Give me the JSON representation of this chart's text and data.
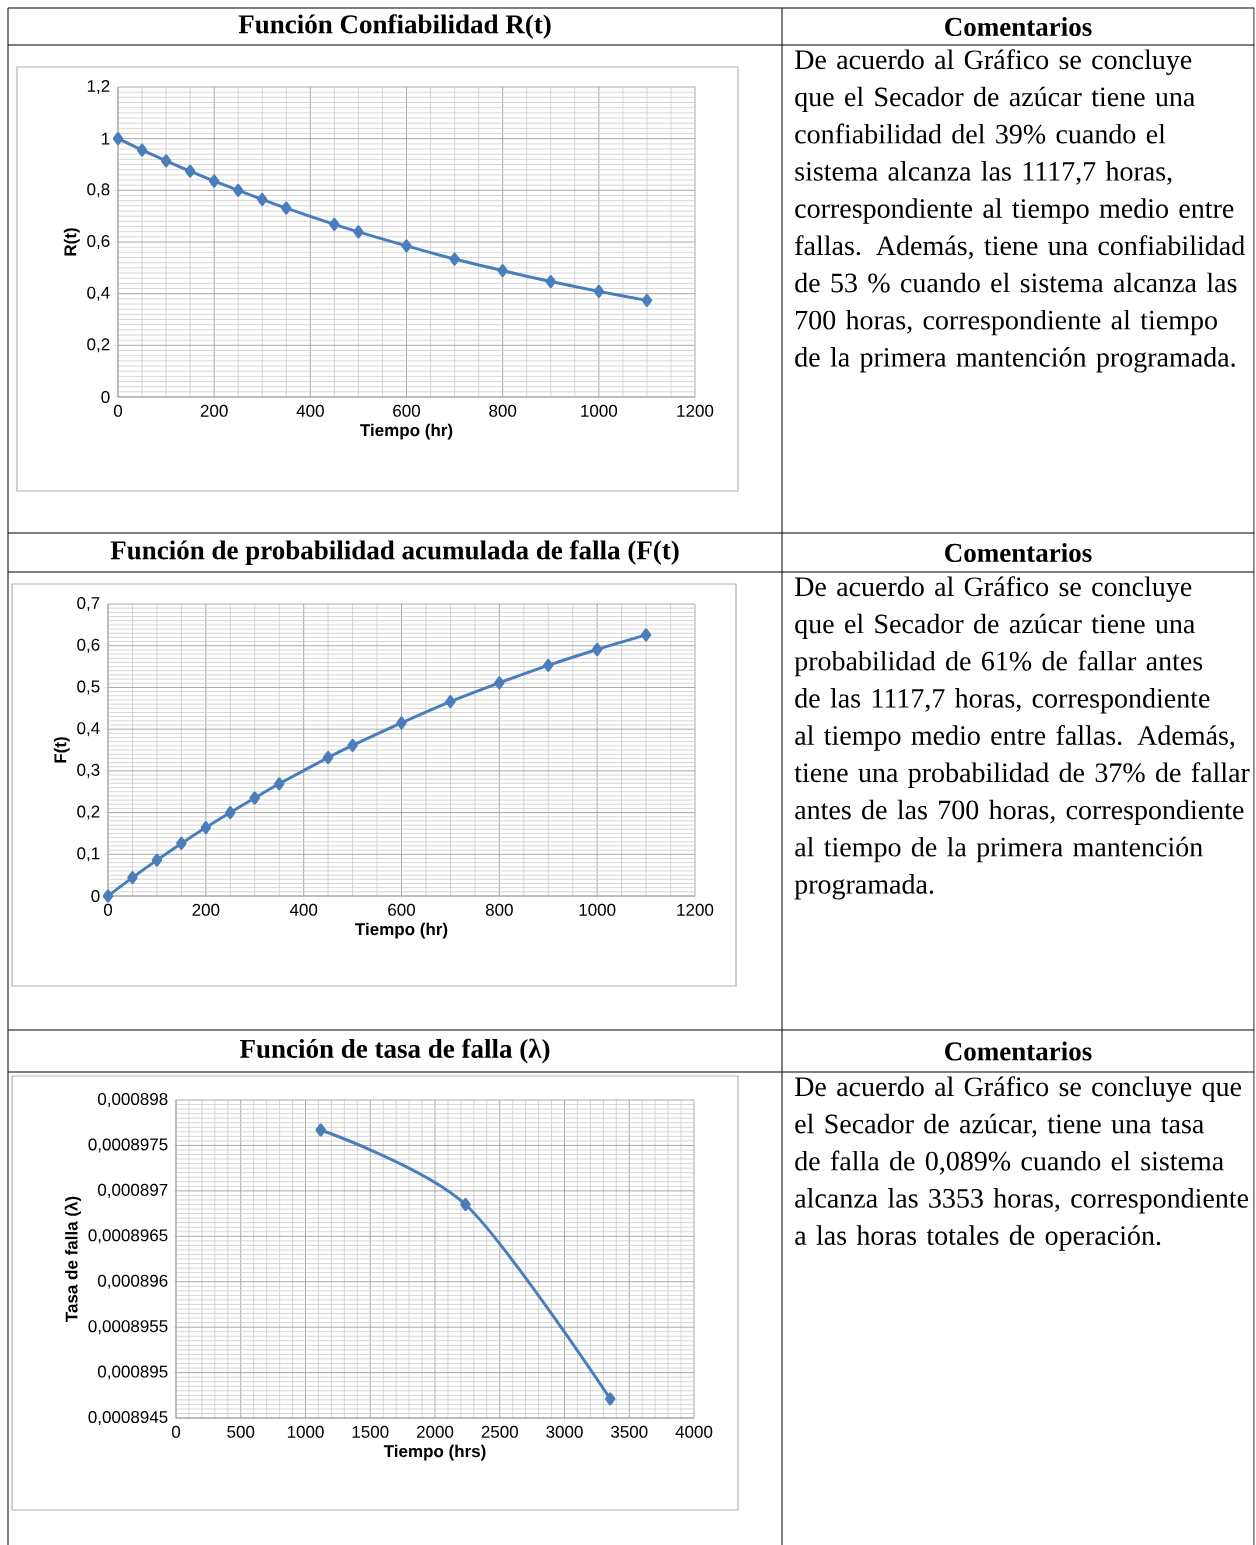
{
  "chart_data": [
    {
      "type": "line",
      "title": "Función  Confiabilidad  R(t)",
      "xlabel": "Tiempo (hr)",
      "ylabel": "R(t)",
      "color": "#4a7ebb",
      "marker": "diamond",
      "grid": true,
      "x": [
        0,
        50,
        100,
        150,
        200,
        250,
        300,
        350,
        450,
        500,
        600,
        700,
        800,
        900,
        1000,
        1100
      ],
      "values": [
        1,
        0.956,
        0.914,
        0.874,
        0.836,
        0.8,
        0.765,
        0.731,
        0.668,
        0.639,
        0.585,
        0.534,
        0.489,
        0.447,
        0.409,
        0.374
      ],
      "xlim": [
        0,
        1200
      ],
      "xticks": [
        0,
        200,
        400,
        600,
        800,
        1000,
        1200
      ],
      "ylim": [
        0,
        1.2
      ],
      "yticks": [
        0,
        {
          "value": 0.2,
          "label": "0,2"
        },
        {
          "value": 0.4,
          "label": "0,4"
        },
        {
          "value": 0.6,
          "label": "0,6"
        },
        {
          "value": 0.8,
          "label": "0,8"
        },
        1,
        {
          "value": 1.2,
          "label": "1,2"
        }
      ],
      "annotations": [
        "Comentarios",
        "De acuerdo al Gráfico  se concluye que el Secador de azúcar  tiene  una confiabilidad  del 39% cuando el sistema  alcanza  las 1117,7 horas, correspondiente  al tiempo medio entre fallas.  Además, tiene una confiabilidad  de 53 % cuando el sistema  alcanza  las 700 horas, correspondiente  al tiempo  de la primera  mantención  programada."
      ]
    },
    {
      "type": "line",
      "title": "Función  de probabilidad  acumulada  de falla (F(t)",
      "xlabel": "Tiempo (hr)",
      "ylabel": "F(t)",
      "color": "#4a7ebb",
      "marker": "diamond",
      "grid": true,
      "x": [
        0,
        50,
        100,
        150,
        200,
        250,
        300,
        350,
        450,
        500,
        600,
        700,
        800,
        900,
        1000,
        1100
      ],
      "values": [
        0,
        0.044,
        0.086,
        0.126,
        0.164,
        0.2,
        0.235,
        0.269,
        0.332,
        0.361,
        0.415,
        0.466,
        0.511,
        0.553,
        0.591,
        0.626
      ],
      "xlim": [
        0,
        1200
      ],
      "xticks": [
        0,
        200,
        400,
        600,
        800,
        1000,
        1200
      ],
      "ylim": [
        0,
        0.7
      ],
      "yticks": [
        0,
        {
          "value": 0.1,
          "label": "0,1"
        },
        {
          "value": 0.2,
          "label": "0,2"
        },
        {
          "value": 0.3,
          "label": "0,3"
        },
        {
          "value": 0.4,
          "label": "0,4"
        },
        {
          "value": 0.5,
          "label": "0,5"
        },
        {
          "value": 0.6,
          "label": "0,6"
        },
        {
          "value": 0.7,
          "label": "0,7"
        }
      ],
      "annotations": [
        "Comentarios",
        "De acuerdo al Gráfico  se concluye que el Secador de azúcar  tiene  una probabilidad  de 61% de fallar  antes de las  1117,7 horas, correspondiente  al tiempo  medio entre fallas.  Además, tiene  una probabilidad  de 37% de fallar  antes de las  700 horas, correspondiente al tiempo  de la primera  mantención programada."
      ]
    },
    {
      "type": "line",
      "title": "Función  de tasa de falla (λ)",
      "xlabel": "Tiempo (hrs)",
      "ylabel": "Tasa de falla (λ)",
      "color": "#4a7ebb",
      "marker": "diamond",
      "grid": true,
      "x": [
        1117.7,
        2235.4,
        3353
      ],
      "values": [
        0.00089767,
        0.00089685,
        0.00089471
      ],
      "xlim": [
        0,
        4000
      ],
      "xticks": [
        0,
        500,
        1000,
        1500,
        2000,
        2500,
        3000,
        3500,
        4000
      ],
      "ylim": [
        0.0008945,
        0.000898
      ],
      "yticks": [
        {
          "value": 0.0008945,
          "label": "0,0008945"
        },
        {
          "value": 0.000895,
          "label": "0,000895"
        },
        {
          "value": 0.0008955,
          "label": "0,0008955"
        },
        {
          "value": 0.000896,
          "label": "0,000896"
        },
        {
          "value": 0.0008965,
          "label": "0,0008965"
        },
        {
          "value": 0.000897,
          "label": "0,000897"
        },
        {
          "value": 0.0008975,
          "label": "0,0008975"
        },
        {
          "value": 0.000898,
          "label": "0,000898"
        }
      ],
      "annotations": [
        "Comentarios",
        "De acuerdo al Gráfico  se concluye que el Secador de azúcar, tiene  una tasa de falla  de 0,089% cuando el sistema  alcanza  las  3353  horas, correspondiente  a las horas totales de operación."
      ]
    }
  ]
}
